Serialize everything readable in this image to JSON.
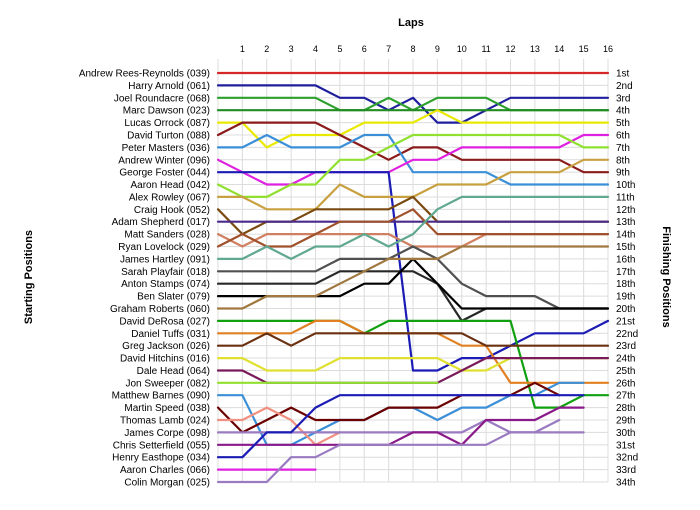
{
  "chart_data": {
    "type": "line",
    "title": "Laps",
    "ylabel_left": "Starting Positions",
    "ylabel_right": "Finishing Positions",
    "x": [
      0,
      1,
      2,
      3,
      4,
      5,
      6,
      7,
      8,
      9,
      10,
      11,
      12,
      13,
      14,
      15,
      16
    ],
    "lap_labels": [
      "1",
      "2",
      "3",
      "4",
      "5",
      "6",
      "7",
      "8",
      "9",
      "10",
      "11",
      "12",
      "13",
      "14",
      "15",
      "16"
    ],
    "ylim": [
      1,
      34
    ],
    "grid": true,
    "drivers": [
      "Andrew Rees-Reynolds (039)",
      "Harry Arnold (061)",
      "Joel Roundacre (068)",
      "Marc Dawson (023)",
      "Lucas Orrock (087)",
      "David Turton (088)",
      "Peter Masters (036)",
      "Andrew Winter (096)",
      "George Foster (044)",
      "Aaron Head (042)",
      "Alex Rowley (067)",
      "Craig Hook (052)",
      "Adam Shepherd (017)",
      "Matt Sanders (028)",
      "Ryan Lovelock (029)",
      "James Hartley (091)",
      "Sarah Playfair (018)",
      "Anton Stamps (074)",
      "Ben Slater (079)",
      "Graham Roberts (060)",
      "David DeRosa (027)",
      "Daniel Tuffs (031)",
      "Greg Jackson (026)",
      "David Hitchins (016)",
      "Dale Head (064)",
      "Jon Sweeper (082)",
      "Matthew Barnes (090)",
      "Martin Speed (038)",
      "Thomas Lamb (024)",
      "James Corpe (098)",
      "Chris Setterfield (055)",
      "Henry Easthope (034)",
      "Aaron Charles (066)",
      "Colin Morgan (025)"
    ],
    "finishing_positions": [
      "1st",
      "2nd",
      "3rd",
      "4th",
      "5th",
      "6th",
      "7th",
      "8th",
      "9th",
      "10th",
      "11th",
      "12th",
      "13th",
      "14th",
      "15th",
      "16th",
      "17th",
      "18th",
      "19th",
      "20th",
      "21st",
      "22nd",
      "23rd",
      "24th",
      "25th",
      "26th",
      "27th",
      "28th",
      "29th",
      "30th",
      "31st",
      "32nd",
      "33rd",
      "34th"
    ],
    "series": [
      {
        "color": "#d62728",
        "values": [
          1,
          1,
          1,
          1,
          1,
          1,
          1,
          1,
          1,
          1,
          1,
          1,
          1,
          1,
          1,
          1,
          1
        ]
      },
      {
        "color": "#1f1f9e",
        "values": [
          2,
          2,
          2,
          2,
          2,
          3,
          3,
          4,
          3,
          5,
          5,
          4,
          3,
          3,
          3,
          3,
          3
        ]
      },
      {
        "color": "#2ca02c",
        "values": [
          3,
          3,
          3,
          3,
          3,
          4,
          4,
          3,
          4,
          3,
          3,
          3,
          4,
          4,
          4,
          4,
          4
        ]
      },
      {
        "color": "#228b22",
        "values": [
          4,
          4,
          4,
          4,
          4,
          4,
          4,
          4,
          4,
          4,
          4,
          4,
          4,
          4,
          4,
          4,
          4
        ]
      },
      {
        "color": "#e8e800",
        "values": [
          5,
          5,
          7,
          6,
          6,
          6,
          5,
          5,
          5,
          4,
          5,
          5,
          5,
          5,
          5,
          5,
          5
        ]
      },
      {
        "color": "#8b1a1a",
        "values": [
          6,
          5,
          5,
          5,
          5,
          6,
          7,
          8,
          7,
          7,
          8,
          8,
          8,
          8,
          8,
          9,
          9
        ]
      },
      {
        "color": "#3a8fd8",
        "values": [
          7,
          7,
          6,
          7,
          7,
          7,
          6,
          6,
          9,
          9,
          9,
          9,
          10,
          10,
          10,
          10,
          10
        ]
      },
      {
        "color": "#e020e0",
        "values": [
          8,
          9,
          10,
          10,
          9,
          9,
          9,
          9,
          8,
          8,
          7,
          7,
          7,
          7,
          7,
          6,
          6
        ]
      },
      {
        "color": "#1b1bb5",
        "values": [
          9,
          9,
          9,
          9,
          9,
          9,
          9,
          9,
          25,
          25,
          24,
          24,
          23,
          22,
          22,
          22,
          21
        ]
      },
      {
        "color": "#90e030",
        "values": [
          10,
          11,
          11,
          10,
          10,
          8,
          8,
          7,
          6,
          6,
          6,
          6,
          6,
          6,
          6,
          7,
          7
        ]
      },
      {
        "color": "#c8a040",
        "values": [
          11,
          11,
          12,
          12,
          12,
          10,
          11,
          11,
          11,
          10,
          10,
          10,
          9,
          9,
          9,
          8,
          8
        ]
      },
      {
        "color": "#7a4a10",
        "values": [
          12,
          14,
          13,
          13,
          12,
          12,
          12,
          12,
          11,
          13,
          13,
          13,
          13,
          13,
          13,
          13,
          13
        ]
      },
      {
        "color": "#4a2a8a",
        "values": [
          13,
          13,
          13,
          13,
          13,
          13,
          13,
          13,
          13,
          13,
          13,
          13,
          13,
          13,
          13,
          13,
          13
        ]
      },
      {
        "color": "#d08060",
        "values": [
          14,
          15,
          14,
          14,
          14,
          14,
          14,
          14,
          15,
          15,
          15,
          14,
          14,
          14,
          14,
          14,
          14
        ]
      },
      {
        "color": "#a0522d",
        "values": [
          15,
          14,
          15,
          15,
          14,
          13,
          13,
          13,
          12,
          14,
          14,
          14,
          14,
          14,
          14,
          14,
          14
        ]
      },
      {
        "color": "#60a890",
        "values": [
          16,
          16,
          15,
          16,
          15,
          15,
          14,
          15,
          14,
          12,
          11,
          11,
          11,
          11,
          11,
          11,
          11
        ]
      },
      {
        "color": "#505050",
        "values": [
          17,
          17,
          17,
          17,
          17,
          16,
          16,
          16,
          15,
          16,
          18,
          19,
          19,
          19,
          20,
          20,
          20
        ]
      },
      {
        "color": "#282828",
        "values": [
          18,
          18,
          18,
          18,
          18,
          17,
          17,
          17,
          17,
          18,
          21,
          20,
          20,
          20,
          20,
          20,
          20
        ]
      },
      {
        "color": "#000000",
        "values": [
          19,
          19,
          19,
          19,
          19,
          19,
          18,
          18,
          16,
          18,
          20,
          20,
          20,
          20,
          20,
          20,
          20
        ]
      },
      {
        "color": "#a07840",
        "values": [
          20,
          20,
          19,
          19,
          19,
          18,
          17,
          16,
          16,
          16,
          15,
          15,
          15,
          15,
          15,
          15,
          15
        ]
      },
      {
        "color": "#10a010",
        "values": [
          21,
          21,
          21,
          21,
          21,
          21,
          22,
          21,
          21,
          21,
          21,
          21,
          21,
          28,
          28,
          27,
          27
        ]
      },
      {
        "color": "#e08020",
        "values": [
          22,
          22,
          22,
          22,
          21,
          21,
          22,
          22,
          22,
          22,
          23,
          23,
          26,
          26,
          26,
          26,
          26
        ]
      },
      {
        "color": "#6a3010",
        "values": [
          23,
          23,
          22,
          23,
          22,
          22,
          22,
          22,
          22,
          22,
          22,
          23,
          23,
          23,
          23,
          23,
          23
        ]
      },
      {
        "color": "#e0e030",
        "values": [
          24,
          24,
          25,
          25,
          25,
          24,
          24,
          24,
          24,
          24,
          25,
          25,
          24,
          24,
          24,
          24,
          24
        ]
      },
      {
        "color": "#7a1a5a",
        "values": [
          25,
          25,
          26,
          26,
          26,
          26,
          26,
          26,
          26,
          26,
          25,
          24,
          24,
          24,
          24,
          24,
          24
        ]
      },
      {
        "color": "#90e030",
        "values": [
          26,
          26,
          26,
          26,
          26,
          26,
          26,
          26,
          26,
          26,
          null,
          null,
          null,
          null,
          null,
          null,
          null
        ]
      },
      {
        "color": "#3a8fd8",
        "values": [
          27,
          27,
          31,
          31,
          30,
          29,
          29,
          28,
          28,
          29,
          28,
          28,
          27,
          27,
          26,
          26,
          null
        ]
      },
      {
        "color": "#6b0000",
        "values": [
          28,
          30,
          29,
          28,
          29,
          29,
          29,
          28,
          28,
          28,
          27,
          27,
          27,
          26,
          27,
          null,
          null
        ]
      },
      {
        "color": "#f09080",
        "values": [
          29,
          29,
          28,
          29,
          31,
          30,
          null,
          null,
          null,
          null,
          null,
          null,
          null,
          null,
          null,
          null,
          null
        ]
      },
      {
        "color": "#9a7ac0",
        "values": [
          30,
          30,
          30,
          30,
          30,
          30,
          30,
          30,
          30,
          30,
          30,
          29,
          30,
          30,
          29,
          null,
          null
        ]
      },
      {
        "color": "#8a1a8a",
        "values": [
          31,
          31,
          31,
          31,
          31,
          31,
          31,
          31,
          30,
          30,
          31,
          29,
          29,
          29,
          28,
          28,
          null
        ]
      },
      {
        "color": "#1b1bb5",
        "values": [
          32,
          32,
          30,
          30,
          28,
          27,
          27,
          27,
          27,
          27,
          27,
          27,
          27,
          27,
          27,
          27,
          null
        ]
      },
      {
        "color": "#e020e0",
        "values": [
          33,
          33,
          33,
          33,
          33,
          null,
          null,
          null,
          null,
          null,
          null,
          null,
          null,
          null,
          null,
          null,
          null
        ]
      },
      {
        "color": "#9a7ac0",
        "values": [
          34,
          34,
          34,
          32,
          32,
          31,
          31,
          31,
          31,
          31,
          31,
          31,
          30,
          30,
          30,
          30,
          null
        ]
      }
    ]
  }
}
